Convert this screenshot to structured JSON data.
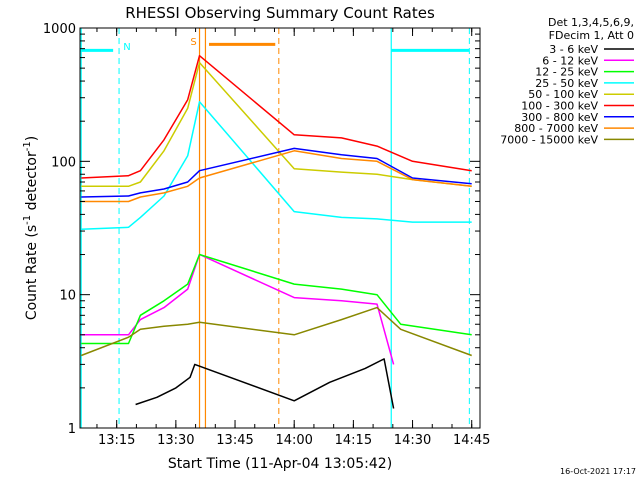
{
  "chart_data": {
    "type": "line",
    "title": "RHESSI Observing Summary Count Rates",
    "xlabel": "Start Time (11-Apr-04 13:05:42)",
    "ylabel_main": "Count Rate (s",
    "ylabel_sup1": "-1",
    "ylabel_mid": " detector",
    "ylabel_sup2": "-1",
    "ylabel_end": ")",
    "yscale": "log",
    "ylim": [
      1,
      1000
    ],
    "xlim": [
      13.095,
      14.785
    ],
    "x_ticks": [
      {
        "x": 13.25,
        "label": "13:15"
      },
      {
        "x": 13.5,
        "label": "13:30"
      },
      {
        "x": 13.75,
        "label": "13:45"
      },
      {
        "x": 14.0,
        "label": "14:00"
      },
      {
        "x": 14.25,
        "label": "14:15"
      },
      {
        "x": 14.5,
        "label": "14:30"
      },
      {
        "x": 14.75,
        "label": "14:45"
      }
    ],
    "y_ticks": [
      {
        "y": 1,
        "label": "1"
      },
      {
        "y": 10,
        "label": "10"
      },
      {
        "y": 100,
        "label": "100"
      },
      {
        "y": 1000,
        "label": "1000"
      }
    ],
    "legend_header": [
      "Det 1,3,4,5,6,9,",
      "FDecim 1, Att 0"
    ],
    "legend_placement": "outside-right",
    "series": [
      {
        "name": "3 - 6 keV",
        "color": "#000000",
        "points": [
          [
            13.33,
            1.5
          ],
          [
            13.42,
            1.7
          ],
          [
            13.5,
            2.0
          ],
          [
            13.56,
            2.4
          ],
          [
            13.58,
            3.0
          ],
          [
            14.0,
            1.6
          ],
          [
            14.15,
            2.2
          ],
          [
            14.3,
            2.8
          ],
          [
            14.38,
            3.3
          ],
          [
            14.42,
            1.4
          ]
        ]
      },
      {
        "name": "6 - 12 keV",
        "color": "#ff00ff",
        "points": [
          [
            13.1,
            5.0
          ],
          [
            13.3,
            5.0
          ],
          [
            13.35,
            6.5
          ],
          [
            13.45,
            8.0
          ],
          [
            13.55,
            11.0
          ],
          [
            13.6,
            20.0
          ],
          [
            14.0,
            9.5
          ],
          [
            14.2,
            9.0
          ],
          [
            14.35,
            8.5
          ],
          [
            14.42,
            3.0
          ]
        ]
      },
      {
        "name": "12 - 25 keV",
        "color": "#00ff00",
        "points": [
          [
            13.1,
            4.3
          ],
          [
            13.3,
            4.3
          ],
          [
            13.35,
            7.0
          ],
          [
            13.45,
            9.0
          ],
          [
            13.55,
            12.0
          ],
          [
            13.6,
            20.0
          ],
          [
            14.0,
            12.0
          ],
          [
            14.2,
            11.0
          ],
          [
            14.35,
            10.0
          ],
          [
            14.45,
            6.0
          ],
          [
            14.75,
            5.0
          ]
        ]
      },
      {
        "name": "25 - 50 keV",
        "color": "#00ffff",
        "points": [
          [
            13.1,
            31
          ],
          [
            13.3,
            32
          ],
          [
            13.35,
            38
          ],
          [
            13.45,
            55
          ],
          [
            13.55,
            110
          ],
          [
            13.6,
            280
          ],
          [
            14.0,
            42
          ],
          [
            14.2,
            38
          ],
          [
            14.35,
            37
          ],
          [
            14.5,
            35
          ],
          [
            14.75,
            35
          ]
        ]
      },
      {
        "name": "50 - 100 keV",
        "color": "#cccc00",
        "points": [
          [
            13.1,
            65
          ],
          [
            13.3,
            65
          ],
          [
            13.35,
            70
          ],
          [
            13.45,
            120
          ],
          [
            13.55,
            250
          ],
          [
            13.6,
            550
          ],
          [
            14.0,
            88
          ],
          [
            14.2,
            83
          ],
          [
            14.35,
            80
          ],
          [
            14.5,
            73
          ],
          [
            14.75,
            65
          ]
        ]
      },
      {
        "name": "100 - 300 keV",
        "color": "#ff0000",
        "points": [
          [
            13.1,
            75
          ],
          [
            13.3,
            78
          ],
          [
            13.35,
            85
          ],
          [
            13.45,
            145
          ],
          [
            13.55,
            290
          ],
          [
            13.6,
            620
          ],
          [
            14.0,
            158
          ],
          [
            14.2,
            150
          ],
          [
            14.35,
            130
          ],
          [
            14.5,
            100
          ],
          [
            14.75,
            85
          ]
        ]
      },
      {
        "name": "300 - 800 keV",
        "color": "#0000ff",
        "points": [
          [
            13.1,
            54
          ],
          [
            13.3,
            55
          ],
          [
            13.35,
            58
          ],
          [
            13.45,
            62
          ],
          [
            13.55,
            70
          ],
          [
            13.6,
            85
          ],
          [
            14.0,
            125
          ],
          [
            14.2,
            112
          ],
          [
            14.35,
            105
          ],
          [
            14.5,
            75
          ],
          [
            14.75,
            68
          ]
        ]
      },
      {
        "name": "800 - 7000 keV",
        "color": "#ff8800",
        "points": [
          [
            13.1,
            50
          ],
          [
            13.3,
            50
          ],
          [
            13.35,
            54
          ],
          [
            13.45,
            58
          ],
          [
            13.55,
            65
          ],
          [
            13.6,
            75
          ],
          [
            14.0,
            120
          ],
          [
            14.2,
            105
          ],
          [
            14.35,
            100
          ],
          [
            14.5,
            73
          ],
          [
            14.75,
            65
          ]
        ]
      },
      {
        "name": "7000 - 15000 keV",
        "color": "#888800",
        "points": [
          [
            13.1,
            3.5
          ],
          [
            13.3,
            4.8
          ],
          [
            13.35,
            5.5
          ],
          [
            13.45,
            5.8
          ],
          [
            13.55,
            6.0
          ],
          [
            13.6,
            6.2
          ],
          [
            14.0,
            5.0
          ],
          [
            14.2,
            6.5
          ],
          [
            14.35,
            8.0
          ],
          [
            14.45,
            5.5
          ],
          [
            14.75,
            3.5
          ]
        ]
      }
    ],
    "annotations": {
      "night_label": "N",
      "saa_label": "S",
      "night_color": "#00ffff",
      "saa_color": "#ff8800",
      "night_bars": [
        [
          13.095,
          13.235
        ],
        [
          14.41,
          14.74
        ]
      ],
      "night_lines_dashed": [
        13.26,
        14.74
      ],
      "night_lines_solid": [
        13.1,
        14.41
      ],
      "saa_bar": [
        13.64,
        13.92
      ],
      "saa_lines_solid": [
        13.6,
        13.625
      ],
      "saa_line_dashed": 13.935,
      "bars_level": 680
    },
    "timestamp": "16-Oct-2021 17:17"
  }
}
